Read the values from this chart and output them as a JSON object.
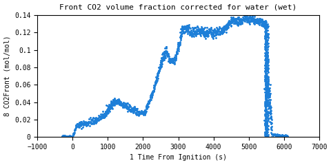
{
  "title": "Front CO2 volume fraction corrected for water (wet)",
  "xlabel": "1 Time From Ignition (s)",
  "ylabel": "8 CO2Front (mol/mol)",
  "xlim": [
    -1000,
    7000
  ],
  "ylim": [
    0,
    0.14
  ],
  "xticks": [
    -1000,
    0,
    1000,
    2000,
    3000,
    4000,
    5000,
    6000,
    7000
  ],
  "yticks": [
    0,
    0.02,
    0.04,
    0.06,
    0.08,
    0.1,
    0.12,
    0.14
  ],
  "ytick_labels": [
    "0",
    "0.02",
    "0.04",
    "0.06",
    "0.08",
    "0.1",
    "0.12",
    "0.14"
  ],
  "line_color": "#1E7FD8",
  "marker": "*",
  "markersize": 1.5,
  "linewidth": 0,
  "title_fontsize": 8,
  "label_fontsize": 7,
  "tick_fontsize": 7
}
